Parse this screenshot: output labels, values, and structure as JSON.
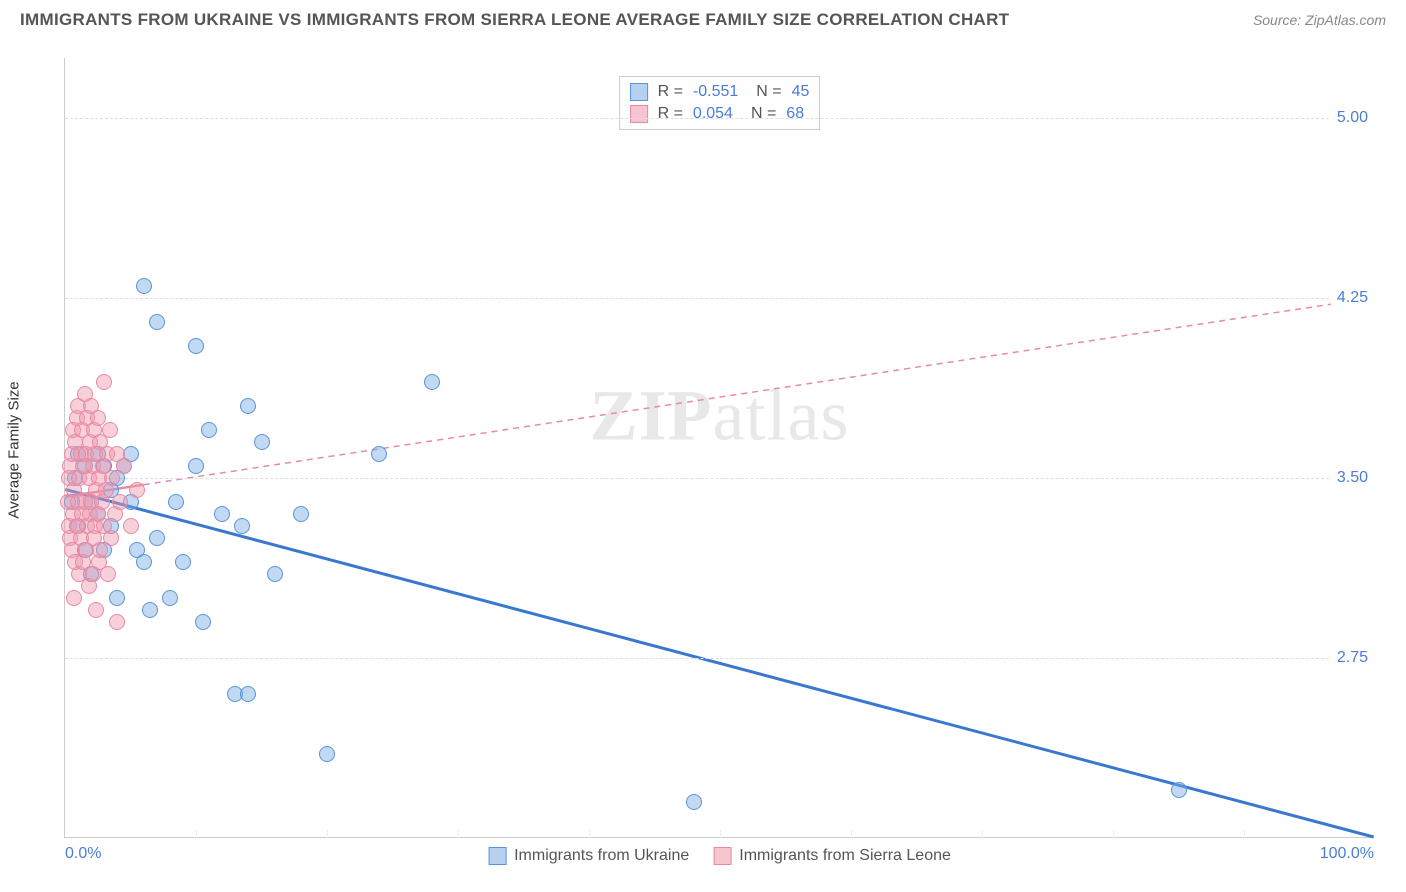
{
  "header": {
    "title": "IMMIGRANTS FROM UKRAINE VS IMMIGRANTS FROM SIERRA LEONE AVERAGE FAMILY SIZE CORRELATION CHART",
    "source": "Source: ZipAtlas.com"
  },
  "watermark": "ZIPatlas",
  "chart": {
    "type": "scatter",
    "ylabel": "Average Family Size",
    "xlim": [
      0,
      100
    ],
    "ylim": [
      2.0,
      5.25
    ],
    "y_ticks": [
      2.75,
      3.5,
      4.25,
      5.0
    ],
    "y_tick_labels": [
      "2.75",
      "3.50",
      "4.25",
      "5.00"
    ],
    "x_tick_labels": [
      "0.0%",
      "100.0%"
    ],
    "grid_h_color": "#dddddd",
    "grid_v_positions": [
      10,
      20,
      30,
      40,
      50,
      60,
      70,
      80,
      90
    ],
    "axis_color": "#cccccc",
    "tick_label_color": "#4a7dd6",
    "background_color": "#ffffff",
    "point_radius": 8,
    "series": [
      {
        "name": "Immigrants from Ukraine",
        "color_fill": "rgba(120,170,230,0.45)",
        "color_stroke": "#5a94d8",
        "color_hex": "#78aae6",
        "r": "-0.551",
        "n": "45",
        "trend": {
          "x1": 0,
          "y1": 3.45,
          "x2": 100,
          "y2": 2.0,
          "color": "#3a78d0",
          "width": 3,
          "dash": "none"
        },
        "points": [
          [
            0.5,
            3.4
          ],
          [
            0.8,
            3.5
          ],
          [
            1.0,
            3.6
          ],
          [
            1.0,
            3.3
          ],
          [
            1.5,
            3.2
          ],
          [
            1.5,
            3.55
          ],
          [
            2.0,
            3.4
          ],
          [
            2.0,
            3.1
          ],
          [
            2.5,
            3.35
          ],
          [
            2.5,
            3.6
          ],
          [
            3.0,
            3.55
          ],
          [
            3.0,
            3.2
          ],
          [
            3.5,
            3.3
          ],
          [
            3.5,
            3.45
          ],
          [
            4.0,
            3.5
          ],
          [
            4.0,
            3.0
          ],
          [
            4.5,
            3.55
          ],
          [
            5.0,
            3.4
          ],
          [
            5.0,
            3.6
          ],
          [
            5.5,
            3.2
          ],
          [
            6.0,
            3.15
          ],
          [
            6.0,
            4.3
          ],
          [
            6.5,
            2.95
          ],
          [
            7.0,
            3.25
          ],
          [
            7.0,
            4.15
          ],
          [
            8.0,
            3.0
          ],
          [
            8.5,
            3.4
          ],
          [
            9.0,
            3.15
          ],
          [
            10.0,
            3.55
          ],
          [
            10.0,
            4.05
          ],
          [
            10.5,
            2.9
          ],
          [
            11.0,
            3.7
          ],
          [
            12.0,
            3.35
          ],
          [
            13.0,
            2.6
          ],
          [
            13.5,
            3.3
          ],
          [
            14.0,
            2.6
          ],
          [
            14.0,
            3.8
          ],
          [
            15.0,
            3.65
          ],
          [
            16.0,
            3.1
          ],
          [
            18.0,
            3.35
          ],
          [
            20.0,
            2.35
          ],
          [
            24.0,
            3.6
          ],
          [
            48.0,
            2.15
          ],
          [
            85.0,
            2.2
          ],
          [
            28.0,
            3.9
          ]
        ]
      },
      {
        "name": "Immigrants from Sierra Leone",
        "color_fill": "rgba(240,150,170,0.45)",
        "color_stroke": "#e88aa4",
        "color_hex": "#f096aa",
        "r": "0.054",
        "n": "68",
        "trend": {
          "x1": 0,
          "y1": 3.42,
          "x2": 100,
          "y2": 4.25,
          "color": "#e88aa4",
          "width": 1.5,
          "dash": "6 5",
          "solid_until": 6
        },
        "points": [
          [
            0.2,
            3.4
          ],
          [
            0.3,
            3.5
          ],
          [
            0.3,
            3.3
          ],
          [
            0.4,
            3.55
          ],
          [
            0.4,
            3.25
          ],
          [
            0.5,
            3.6
          ],
          [
            0.5,
            3.2
          ],
          [
            0.6,
            3.7
          ],
          [
            0.6,
            3.35
          ],
          [
            0.7,
            3.45
          ],
          [
            0.7,
            3.0
          ],
          [
            0.8,
            3.65
          ],
          [
            0.8,
            3.15
          ],
          [
            0.9,
            3.75
          ],
          [
            0.9,
            3.3
          ],
          [
            1.0,
            3.8
          ],
          [
            1.0,
            3.4
          ],
          [
            1.1,
            3.5
          ],
          [
            1.1,
            3.1
          ],
          [
            1.2,
            3.6
          ],
          [
            1.2,
            3.25
          ],
          [
            1.3,
            3.7
          ],
          [
            1.3,
            3.35
          ],
          [
            1.4,
            3.55
          ],
          [
            1.4,
            3.15
          ],
          [
            1.5,
            3.85
          ],
          [
            1.5,
            3.4
          ],
          [
            1.6,
            3.6
          ],
          [
            1.6,
            3.2
          ],
          [
            1.7,
            3.75
          ],
          [
            1.7,
            3.3
          ],
          [
            1.8,
            3.5
          ],
          [
            1.8,
            3.05
          ],
          [
            1.9,
            3.65
          ],
          [
            1.9,
            3.35
          ],
          [
            2.0,
            3.8
          ],
          [
            2.0,
            3.4
          ],
          [
            2.1,
            3.55
          ],
          [
            2.1,
            3.1
          ],
          [
            2.2,
            3.7
          ],
          [
            2.2,
            3.25
          ],
          [
            2.3,
            3.6
          ],
          [
            2.3,
            3.3
          ],
          [
            2.4,
            3.45
          ],
          [
            2.4,
            2.95
          ],
          [
            2.5,
            3.75
          ],
          [
            2.5,
            3.35
          ],
          [
            2.6,
            3.5
          ],
          [
            2.6,
            3.15
          ],
          [
            2.7,
            3.65
          ],
          [
            2.7,
            3.2
          ],
          [
            2.8,
            3.4
          ],
          [
            2.9,
            3.55
          ],
          [
            3.0,
            3.3
          ],
          [
            3.0,
            3.9
          ],
          [
            3.1,
            3.45
          ],
          [
            3.2,
            3.6
          ],
          [
            3.3,
            3.1
          ],
          [
            3.4,
            3.7
          ],
          [
            3.5,
            3.25
          ],
          [
            3.6,
            3.5
          ],
          [
            3.8,
            3.35
          ],
          [
            4.0,
            3.6
          ],
          [
            4.0,
            2.9
          ],
          [
            4.2,
            3.4
          ],
          [
            4.5,
            3.55
          ],
          [
            5.0,
            3.3
          ],
          [
            5.5,
            3.45
          ]
        ]
      }
    ],
    "legend_bottom": {
      "items": [
        {
          "swatch_class": "blue",
          "label": "Immigrants from Ukraine"
        },
        {
          "swatch_class": "pink",
          "label": "Immigrants from Sierra Leone"
        }
      ]
    },
    "stat_legend": {
      "r_label": "R =",
      "n_label": "N ="
    }
  }
}
